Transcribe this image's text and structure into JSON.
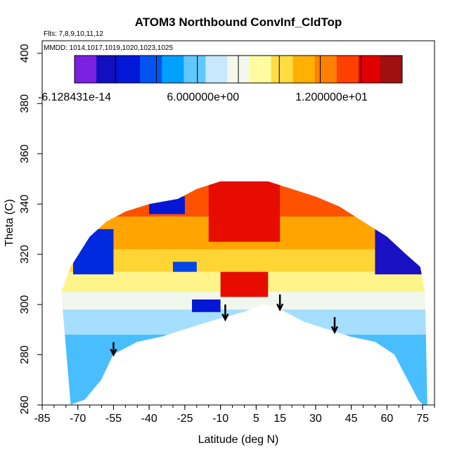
{
  "chart_data": {
    "type": "heatmap",
    "title": "ATOM3 Northbound ConvInf_CldTop",
    "flights_label": "Flts: 7,8,9,10,11,12",
    "dates_label": "MMDD: 1014,1017,1019,1020,1023,1025",
    "xlabel": "Latitude (deg N)",
    "ylabel": "Theta (C)",
    "xlim": [
      -85,
      80
    ],
    "ylim": [
      260,
      405
    ],
    "x_ticks": [
      -85,
      -70,
      -55,
      -40,
      -25,
      -10,
      5,
      15,
      30,
      45,
      60,
      75
    ],
    "x_tick_labels": [
      "-85",
      "-70",
      "-55",
      "-40",
      "-25",
      "-10",
      "5",
      "15",
      "30",
      "45",
      "60",
      "75"
    ],
    "y_ticks": [
      260,
      280,
      300,
      320,
      340,
      360,
      380,
      400
    ],
    "y_tick_labels": [
      "260",
      "280",
      "300",
      "320",
      "340",
      "360",
      "380",
      "400"
    ],
    "colorbar": {
      "range": [
        -6.128431e-14,
        15.3
      ],
      "tick_values": [
        0,
        6,
        12
      ],
      "tick_labels": [
        "-6.128431e-14",
        "6.000000e+00",
        "1.200000e+01"
      ],
      "colors": [
        "#7b1fe0",
        "#1010c0",
        "#0018d8",
        "#0055f0",
        "#00a0ff",
        "#60c8ff",
        "#c8e8ff",
        "#f4f8ec",
        "#fffba0",
        "#ffdc40",
        "#ffb000",
        "#ff8000",
        "#ff4000",
        "#e00000",
        "#a01010"
      ]
    },
    "surface_boundary": [
      {
        "lat": -73,
        "theta": 260
      },
      {
        "lat": -67,
        "theta": 262
      },
      {
        "lat": -60,
        "theta": 270
      },
      {
        "lat": -55,
        "theta": 280
      },
      {
        "lat": -45,
        "theta": 285
      },
      {
        "lat": -35,
        "theta": 287
      },
      {
        "lat": -25,
        "theta": 290
      },
      {
        "lat": -15,
        "theta": 293
      },
      {
        "lat": 0,
        "theta": 297
      },
      {
        "lat": 8,
        "theta": 300
      },
      {
        "lat": 15,
        "theta": 298
      },
      {
        "lat": 25,
        "theta": 293
      },
      {
        "lat": 35,
        "theta": 290
      },
      {
        "lat": 45,
        "theta": 287
      },
      {
        "lat": 55,
        "theta": 285
      },
      {
        "lat": 63,
        "theta": 280
      },
      {
        "lat": 68,
        "theta": 271
      },
      {
        "lat": 73,
        "theta": 262
      },
      {
        "lat": 75,
        "theta": 260
      }
    ],
    "top_boundary": [
      {
        "lat": -77,
        "theta": 305
      },
      {
        "lat": -73,
        "theta": 315
      },
      {
        "lat": -65,
        "theta": 327
      },
      {
        "lat": -58,
        "theta": 333
      },
      {
        "lat": -50,
        "theta": 337
      },
      {
        "lat": -40,
        "theta": 340
      },
      {
        "lat": -28,
        "theta": 342
      },
      {
        "lat": -20,
        "theta": 346
      },
      {
        "lat": -10,
        "theta": 349
      },
      {
        "lat": 10,
        "theta": 349
      },
      {
        "lat": 20,
        "theta": 346
      },
      {
        "lat": 30,
        "theta": 343
      },
      {
        "lat": 40,
        "theta": 339
      },
      {
        "lat": 50,
        "theta": 333
      },
      {
        "lat": 60,
        "theta": 327
      },
      {
        "lat": 68,
        "theta": 320
      },
      {
        "lat": 74,
        "theta": 315
      },
      {
        "lat": 76,
        "theta": 305
      },
      {
        "lat": 77,
        "theta": 260
      }
    ],
    "layers": [
      {
        "theta_max": 349,
        "theta_min": 335,
        "value": 12.8
      },
      {
        "theta_max": 335,
        "theta_min": 322,
        "value": 11.2
      },
      {
        "theta_max": 322,
        "theta_min": 313,
        "value": 10.0
      },
      {
        "theta_max": 313,
        "theta_min": 305,
        "value": 9.0
      },
      {
        "theta_max": 305,
        "theta_min": 298,
        "value": 7.6
      },
      {
        "theta_max": 298,
        "theta_min": 288,
        "value": 6.2
      },
      {
        "theta_max": 288,
        "theta_min": 260,
        "value": 5.2
      }
    ],
    "features": [
      {
        "lat_min": -15,
        "lat_max": 15,
        "theta_min": 325,
        "theta_max": 349,
        "value": 14.0
      },
      {
        "lat_min": -10,
        "lat_max": 10,
        "theta_min": 303,
        "theta_max": 313,
        "value": 14.0
      },
      {
        "lat_min": -72,
        "lat_max": -55,
        "theta_min": 312,
        "theta_max": 330,
        "value": 2.5
      },
      {
        "lat_min": 55,
        "lat_max": 76,
        "theta_min": 312,
        "theta_max": 330,
        "value": 1.0
      },
      {
        "lat_min": -40,
        "lat_max": -25,
        "theta_min": 336,
        "theta_max": 343,
        "value": 2.0
      },
      {
        "lat_min": -22,
        "lat_max": -10,
        "theta_min": 297,
        "theta_max": 302,
        "value": 2.0
      },
      {
        "lat_min": -30,
        "lat_max": -20,
        "theta_min": 313,
        "theta_max": 317,
        "value": 3.0
      }
    ],
    "annotations": [
      {
        "type": "arrow-down",
        "lat": -55,
        "theta_from": 285,
        "theta_to": 280
      },
      {
        "type": "arrow-down",
        "lat": -8,
        "theta_from": 300,
        "theta_to": 294
      },
      {
        "type": "arrow-down",
        "lat": 15,
        "theta_from": 304,
        "theta_to": 298
      },
      {
        "type": "arrow-down",
        "lat": 38,
        "theta_from": 295,
        "theta_to": 289
      }
    ]
  }
}
